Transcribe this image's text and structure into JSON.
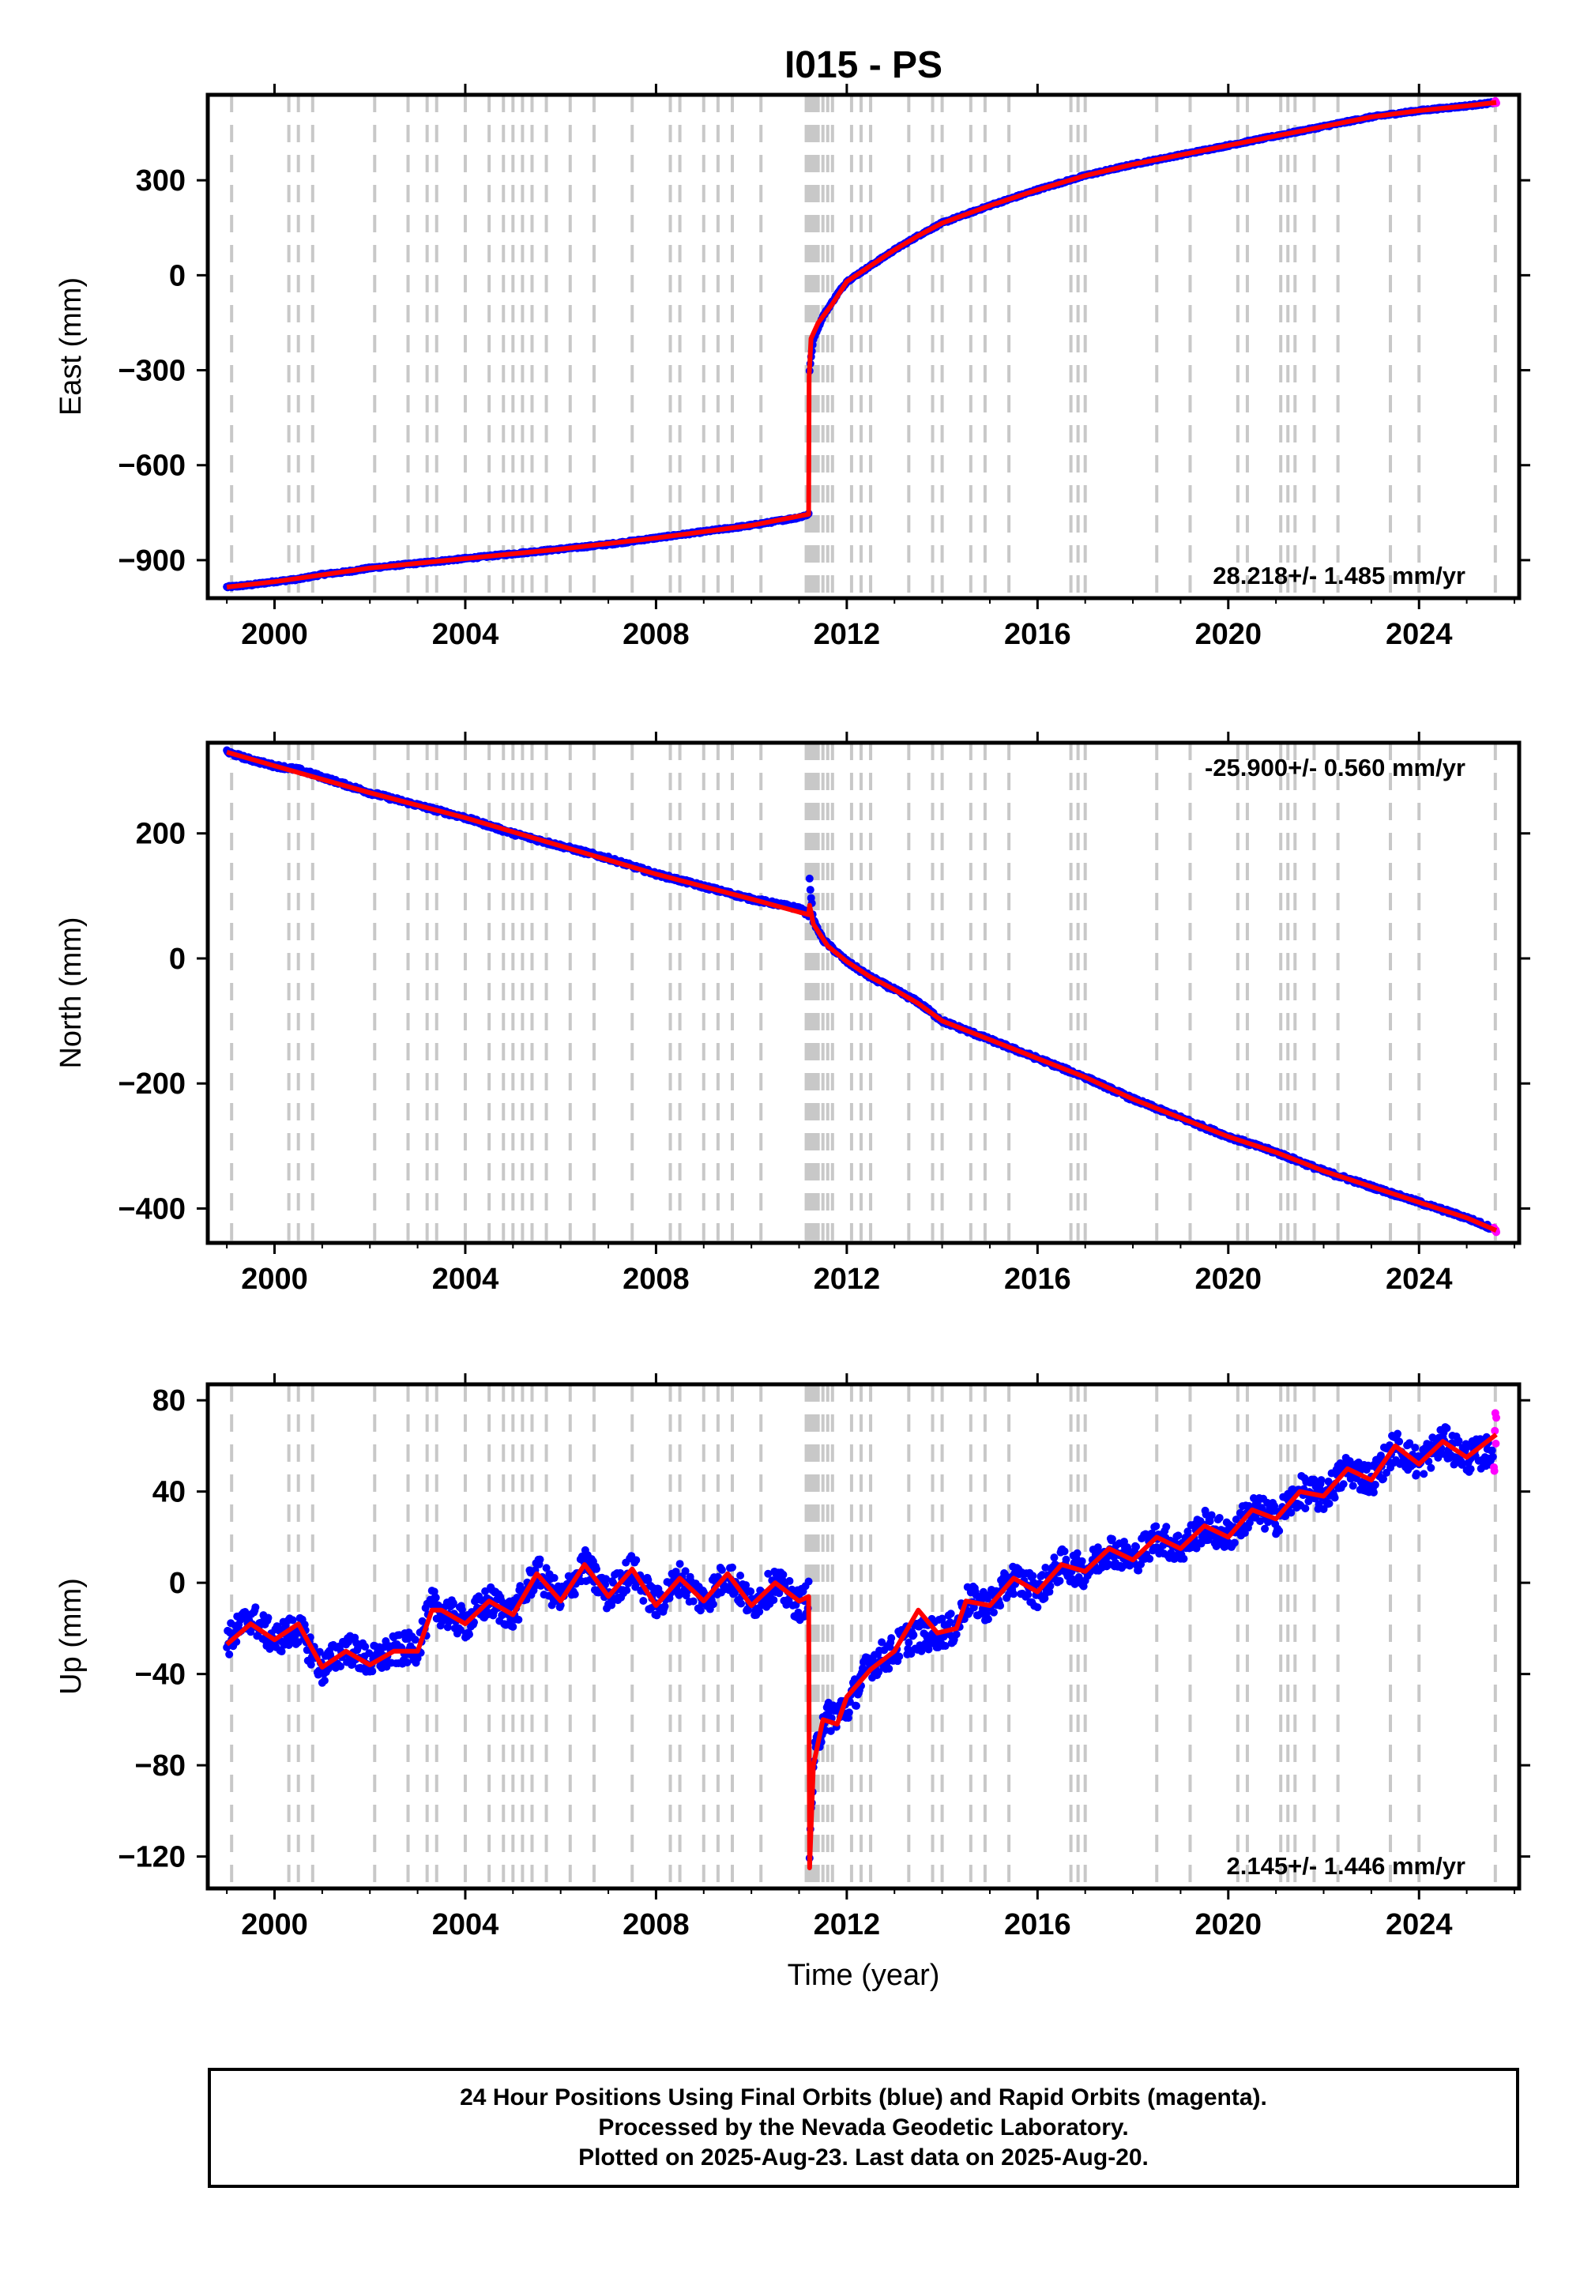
{
  "title": "I015 - PS",
  "footer": {
    "line1": "24 Hour Positions Using Final Orbits (blue) and Rapid Orbits (magenta).",
    "line2": "Processed by the Nevada Geodetic Laboratory.",
    "line3": "Plotted on 2025-Aug-23. Last data on 2025-Aug-20."
  },
  "colors": {
    "final_orbits": "#0000ff",
    "rapid_orbits": "#ff00ff",
    "model": "#ff0000",
    "event_lines": "#c8c8c8"
  },
  "chart_data": [
    {
      "type": "scatter",
      "panel": "east",
      "ylabel": "East (mm)",
      "xlim": [
        1998.6,
        2026.1
      ],
      "ylim": [
        -1020,
        570
      ],
      "xticks": [
        2000,
        2004,
        2008,
        2012,
        2016,
        2020,
        2024
      ],
      "yticks": [
        -900,
        -600,
        -300,
        0,
        300
      ],
      "rate_label": "28.218+/- 1.485 mm/yr",
      "rate_label_position": "bottom-right",
      "series": [
        {
          "name": "Final Orbits",
          "color": "#0000ff",
          "x": [
            1999.0,
            1999.5,
            2000.0,
            2000.5,
            2001.0,
            2001.5,
            2002.0,
            2003.0,
            2004.0,
            2005.0,
            2006.0,
            2007.0,
            2008.0,
            2009.0,
            2010.0,
            2011.0,
            2011.2,
            2011.22,
            2011.3,
            2011.5,
            2011.8,
            2012.0,
            2012.5,
            2013.0,
            2013.5,
            2014.0,
            2015.0,
            2016.0,
            2017.0,
            2018.0,
            2019.0,
            2020.0,
            2021.0,
            2022.0,
            2023.0,
            2024.0,
            2025.0,
            2025.55
          ],
          "y": [
            -985,
            -978,
            -968,
            -960,
            -945,
            -937,
            -925,
            -910,
            -895,
            -880,
            -865,
            -850,
            -830,
            -810,
            -790,
            -765,
            -755,
            -300,
            -200,
            -130,
            -60,
            -20,
            30,
            80,
            125,
            165,
            220,
            270,
            315,
            350,
            380,
            410,
            440,
            470,
            500,
            520,
            535,
            545
          ]
        },
        {
          "name": "Rapid Orbits",
          "color": "#ff00ff",
          "x": [
            2025.57,
            2025.6,
            2025.62
          ],
          "y": [
            545,
            548,
            546
          ]
        },
        {
          "name": "Model",
          "color": "#ff0000",
          "x": [
            1999.0,
            2000.0,
            2002.0,
            2004.0,
            2006.0,
            2008.0,
            2010.0,
            2011.2,
            2011.21,
            2011.25,
            2011.4,
            2011.7,
            2012.0,
            2012.5,
            2013.0,
            2013.5,
            2014.0,
            2015.0,
            2016.0,
            2017.0,
            2018.0,
            2019.0,
            2020.0,
            2021.0,
            2022.0,
            2023.0,
            2024.0,
            2025.0,
            2025.62
          ],
          "y": [
            -985,
            -968,
            -925,
            -895,
            -865,
            -830,
            -790,
            -755,
            -320,
            -200,
            -150,
            -90,
            -20,
            30,
            80,
            125,
            165,
            220,
            270,
            315,
            350,
            380,
            410,
            440,
            470,
            500,
            520,
            535,
            546
          ]
        }
      ]
    },
    {
      "type": "scatter",
      "panel": "north",
      "ylabel": "North (mm)",
      "xlim": [
        1998.6,
        2026.1
      ],
      "ylim": [
        -455,
        345
      ],
      "xticks": [
        2000,
        2004,
        2008,
        2012,
        2016,
        2020,
        2024
      ],
      "yticks": [
        -400,
        -200,
        0,
        200
      ],
      "rate_label": "-25.900+/- 0.560 mm/yr",
      "rate_label_position": "top-right",
      "series": [
        {
          "name": "Final Orbits",
          "color": "#0000ff",
          "x": [
            1999.0,
            1999.5,
            2000.0,
            2000.5,
            2001.0,
            2002.0,
            2003.0,
            2004.0,
            2005.0,
            2006.0,
            2007.0,
            2008.0,
            2009.0,
            2010.0,
            2011.0,
            2011.2,
            2011.22,
            2011.3,
            2011.5,
            2012.0,
            2012.5,
            2013.0,
            2013.5,
            2014.0,
            2015.0,
            2016.0,
            2017.0,
            2018.0,
            2019.0,
            2020.0,
            2021.0,
            2022.0,
            2023.0,
            2024.0,
            2025.0,
            2025.55
          ],
          "y": [
            330,
            318,
            308,
            302,
            290,
            265,
            245,
            225,
            200,
            180,
            160,
            135,
            115,
            95,
            80,
            70,
            125,
            60,
            30,
            -5,
            -30,
            -50,
            -70,
            -100,
            -130,
            -160,
            -190,
            -225,
            -255,
            -285,
            -310,
            -340,
            -365,
            -390,
            -415,
            -432
          ]
        },
        {
          "name": "Rapid Orbits",
          "color": "#ff00ff",
          "x": [
            2025.57,
            2025.6,
            2025.62
          ],
          "y": [
            -433,
            -434,
            -435
          ]
        },
        {
          "name": "Model",
          "color": "#ff0000",
          "x": [
            1999.0,
            2000.0,
            2002.0,
            2004.0,
            2006.0,
            2008.0,
            2010.0,
            2011.2,
            2011.22,
            2011.3,
            2011.6,
            2012.0,
            2012.5,
            2013.0,
            2013.5,
            2014.0,
            2015.0,
            2016.0,
            2017.0,
            2018.0,
            2019.0,
            2020.0,
            2021.0,
            2022.0,
            2023.0,
            2024.0,
            2025.0,
            2025.62
          ],
          "y": [
            330,
            308,
            265,
            225,
            180,
            135,
            95,
            70,
            85,
            55,
            20,
            -5,
            -30,
            -50,
            -72,
            -100,
            -130,
            -160,
            -190,
            -225,
            -255,
            -285,
            -310,
            -340,
            -365,
            -390,
            -415,
            -435
          ]
        }
      ]
    },
    {
      "type": "scatter",
      "panel": "up",
      "ylabel": "Up (mm)",
      "xlabel": "Time (year)",
      "xlim": [
        1998.6,
        2026.1
      ],
      "ylim": [
        -134,
        87
      ],
      "xticks": [
        2000,
        2004,
        2008,
        2012,
        2016,
        2020,
        2024
      ],
      "yticks": [
        -120,
        -80,
        -40,
        0,
        40,
        80
      ],
      "rate_label": "2.145+/- 1.446 mm/yr",
      "rate_label_position": "bottom-right",
      "series": [
        {
          "name": "Final Orbits",
          "color": "#0000ff",
          "x": [
            1999.0,
            1999.5,
            2000.0,
            2000.5,
            2001.0,
            2001.5,
            2002.0,
            2002.5,
            2003.0,
            2003.3,
            2003.5,
            2004.0,
            2004.5,
            2005.0,
            2005.5,
            2006.0,
            2006.5,
            2007.0,
            2007.5,
            2008.0,
            2008.5,
            2009.0,
            2009.5,
            2010.0,
            2010.5,
            2011.0,
            2011.2,
            2011.22,
            2011.3,
            2011.5,
            2012.0,
            2012.5,
            2013.0,
            2013.2,
            2014.3,
            2014.5,
            2015.0,
            2015.5,
            2016.0,
            2016.5,
            2017.0,
            2017.5,
            2018.0,
            2018.5,
            2019.0,
            2019.5,
            2020.0,
            2020.5,
            2021.0,
            2021.5,
            2022.0,
            2022.5,
            2023.0,
            2023.5,
            2024.0,
            2024.5,
            2025.0,
            2025.55
          ],
          "y": [
            -26,
            -15,
            -25,
            -20,
            -38,
            -28,
            -35,
            -30,
            -28,
            -10,
            -12,
            -18,
            -8,
            -14,
            5,
            -8,
            8,
            -6,
            6,
            -10,
            2,
            -8,
            4,
            -10,
            0,
            -10,
            -6,
            -118,
            -80,
            -60,
            -55,
            -35,
            -30,
            -25,
            -20,
            -8,
            -10,
            2,
            -4,
            8,
            5,
            15,
            10,
            20,
            15,
            25,
            20,
            32,
            28,
            40,
            38,
            50,
            45,
            60,
            52,
            62,
            55,
            58
          ]
        },
        {
          "name": "Rapid Orbits",
          "color": "#ff00ff",
          "x": [
            2025.57,
            2025.59,
            2025.6,
            2025.61,
            2025.62
          ],
          "y": [
            52,
            60,
            68,
            58,
            74
          ]
        },
        {
          "name": "Model",
          "color": "#ff0000",
          "x": [
            1999.0,
            1999.5,
            2000.0,
            2000.5,
            2001.0,
            2001.5,
            2002.0,
            2002.5,
            2003.0,
            2003.3,
            2003.5,
            2004.0,
            2004.5,
            2005.0,
            2005.5,
            2006.0,
            2006.5,
            2007.0,
            2007.5,
            2008.0,
            2008.5,
            2009.0,
            2009.5,
            2010.0,
            2010.5,
            2011.0,
            2011.2,
            2011.22,
            2011.3,
            2011.5,
            2011.8,
            2012.0,
            2012.5,
            2013.0,
            2013.5,
            2013.9,
            2014.3,
            2014.5,
            2015.0,
            2015.5,
            2016.0,
            2016.5,
            2017.0,
            2017.5,
            2018.0,
            2018.5,
            2019.0,
            2019.5,
            2020.0,
            2020.5,
            2021.0,
            2021.5,
            2022.0,
            2022.5,
            2023.0,
            2023.5,
            2024.0,
            2024.5,
            2025.0,
            2025.62
          ],
          "y": [
            -27,
            -18,
            -25,
            -18,
            -37,
            -30,
            -36,
            -30,
            -30,
            -12,
            -12,
            -18,
            -8,
            -14,
            4,
            -8,
            8,
            -6,
            6,
            -10,
            2,
            -8,
            4,
            -10,
            0,
            -8,
            -6,
            -125,
            -80,
            -60,
            -62,
            -50,
            -38,
            -30,
            -12,
            -22,
            -20,
            -8,
            -10,
            2,
            -4,
            8,
            5,
            15,
            10,
            20,
            15,
            25,
            20,
            32,
            28,
            40,
            38,
            50,
            45,
            60,
            52,
            62,
            55,
            65
          ]
        }
      ]
    }
  ],
  "event_lines": [
    1999.1,
    2000.3,
    2000.5,
    2000.8,
    2002.1,
    2002.8,
    2003.2,
    2003.4,
    2004.0,
    2004.5,
    2004.8,
    2005.0,
    2005.2,
    2005.4,
    2005.7,
    2006.2,
    2006.7,
    2007.5,
    2008.3,
    2008.5,
    2009.0,
    2009.3,
    2009.6,
    2010.2,
    2011.15,
    2011.2,
    2011.25,
    2011.3,
    2011.35,
    2011.4,
    2011.5,
    2011.6,
    2011.7,
    2012.1,
    2012.3,
    2012.5,
    2013.3,
    2013.8,
    2014.0,
    2014.6,
    2014.9,
    2015.4,
    2016.7,
    2016.85,
    2017.0,
    2018.5,
    2019.2,
    2020.2,
    2020.4,
    2021.1,
    2021.25,
    2021.4,
    2021.8,
    2022.3,
    2023.4,
    2024.0,
    2025.6
  ]
}
